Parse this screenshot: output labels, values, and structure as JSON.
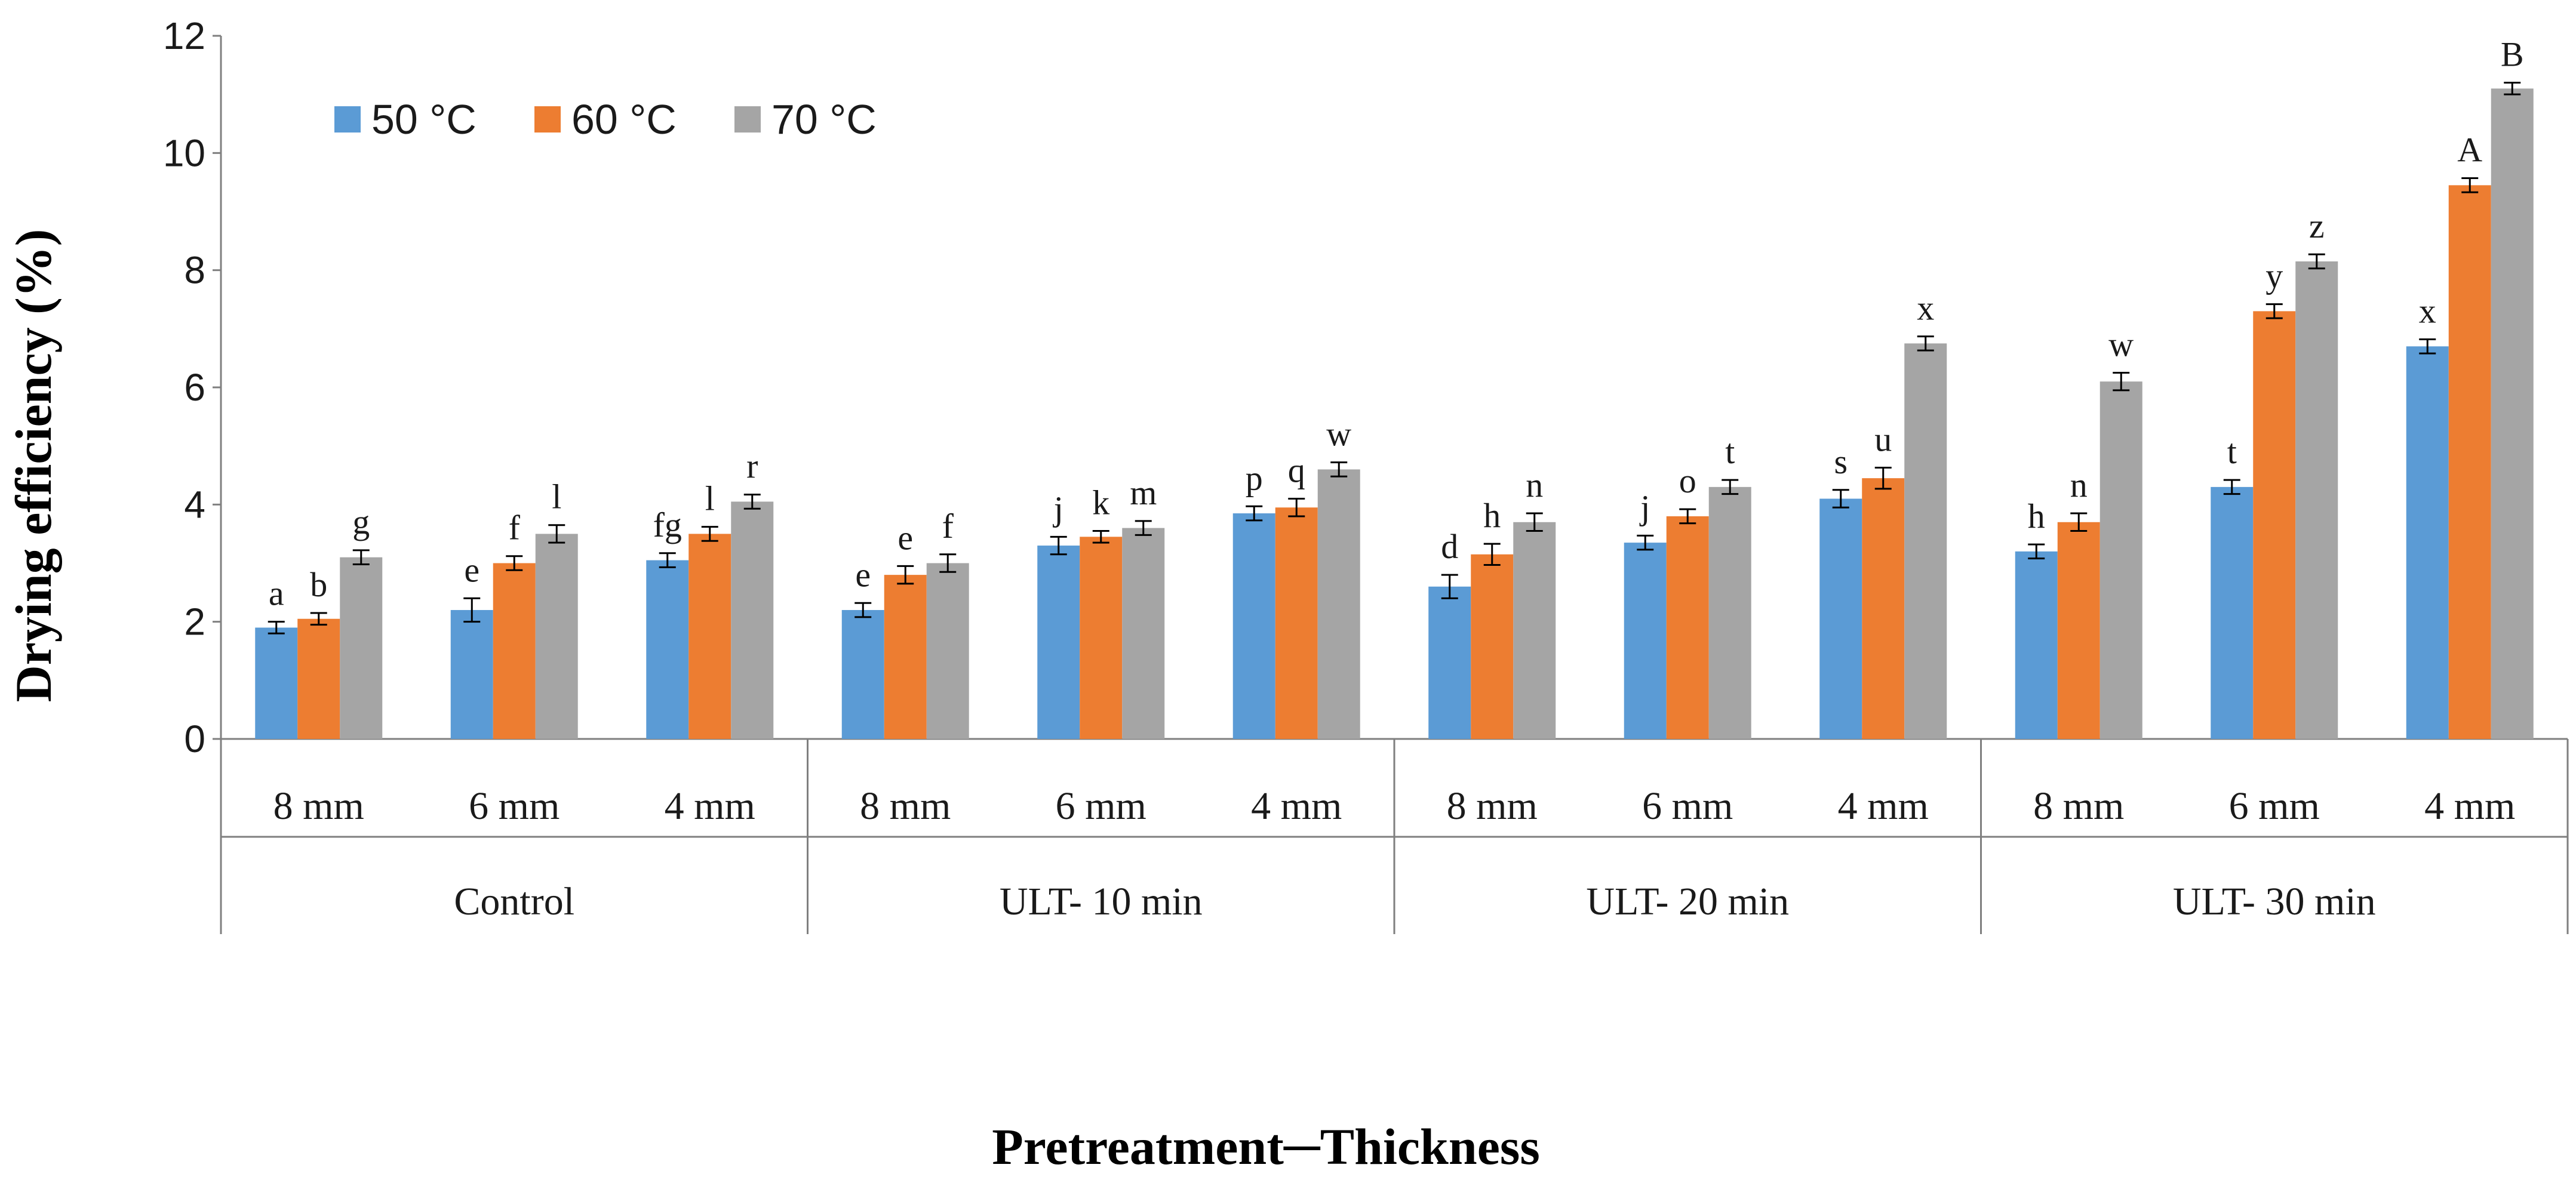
{
  "chart_data": {
    "type": "bar",
    "title": "",
    "xlabel": "Pretreatment─Thickness",
    "ylabel": "Drying efficiency (%)",
    "ylim": [
      0,
      12
    ],
    "yticks": [
      0,
      2,
      4,
      6,
      8,
      10,
      12
    ],
    "grid": false,
    "legend_position": "top-left",
    "colors": [
      "#5b9bd5",
      "#ed7d31",
      "#a5a5a5"
    ],
    "groups": [
      "Control",
      "ULT- 10 min",
      "ULT- 20 min",
      "ULT- 30 min"
    ],
    "subcategories": [
      "8 mm",
      "6 mm",
      "4 mm"
    ],
    "series": [
      {
        "name": "50 °C",
        "values": [
          1.9,
          2.2,
          3.05,
          2.2,
          3.3,
          3.85,
          2.6,
          3.35,
          4.1,
          3.2,
          4.3,
          6.7
        ],
        "errors": [
          0.1,
          0.2,
          0.12,
          0.12,
          0.15,
          0.12,
          0.2,
          0.12,
          0.15,
          0.12,
          0.12,
          0.12
        ],
        "labels": [
          "a",
          "e",
          "fg",
          "e",
          "j",
          "p",
          "d",
          "j",
          "s",
          "h",
          "t",
          "x"
        ]
      },
      {
        "name": "60 °C",
        "values": [
          2.05,
          3.0,
          3.5,
          2.8,
          3.45,
          3.95,
          3.15,
          3.8,
          4.45,
          3.7,
          7.3,
          9.45
        ],
        "errors": [
          0.1,
          0.12,
          0.12,
          0.15,
          0.1,
          0.15,
          0.18,
          0.12,
          0.18,
          0.15,
          0.12,
          0.12
        ],
        "labels": [
          "b",
          "f",
          "l",
          "e",
          "k",
          "q",
          "h",
          "o",
          "u",
          "n",
          "y",
          "A"
        ]
      },
      {
        "name": "70 °C",
        "values": [
          3.1,
          3.5,
          4.05,
          3.0,
          3.6,
          4.6,
          3.7,
          4.3,
          6.75,
          6.1,
          8.15,
          11.1
        ],
        "errors": [
          0.12,
          0.15,
          0.12,
          0.15,
          0.12,
          0.12,
          0.15,
          0.12,
          0.12,
          0.15,
          0.12,
          0.1
        ],
        "labels": [
          "g",
          "l",
          "r",
          "f",
          "m",
          "w",
          "n",
          "t",
          "x",
          "w",
          "z",
          "B"
        ]
      }
    ]
  }
}
